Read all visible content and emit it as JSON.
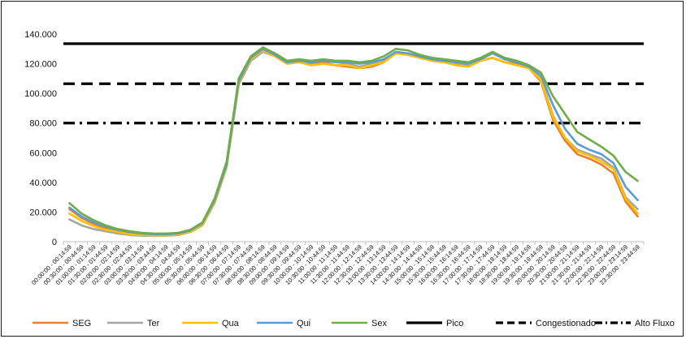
{
  "chart_data": {
    "type": "line",
    "title": "",
    "xlabel": "",
    "ylabel": "",
    "ylim": [
      0,
      140000
    ],
    "yticks": [
      "0",
      "20.000",
      "40.000",
      "60.000",
      "80.000",
      "100.000",
      "120.000",
      "140.000"
    ],
    "x": [
      "00:00:00 - 00:14:59",
      "00:30:00 - 00:44:59",
      "01:00:00 - 01:14:59",
      "01:30:00 - 01:44:59",
      "02:00:00 - 02:14:59",
      "02:30:00 - 02:44:59",
      "03:00:00 - 03:14:59",
      "03:30:00 - 03:44:59",
      "04:00:00 - 04:14:59",
      "04:30:00 - 04:44:59",
      "05:00:00 - 05:14:59",
      "05:30:00 - 05:44:59",
      "06:00:00 - 06:14:59",
      "06:30:00 - 06:44:59",
      "07:00:00 - 07:14:59",
      "07:30:00 - 07:44:59",
      "08:00:00 - 08:14:59",
      "08:30:00 - 08:44:59",
      "09:00:00 - 09:14:59",
      "09:30:00 - 09:44:59",
      "10:00:00 - 10:14:59",
      "10:30:00 - 10:44:59",
      "11:00:00 - 11:14:59",
      "11:30:00 - 11:44:59",
      "12:00:00 - 12:14:59",
      "12:30:00 - 12:44:59",
      "13:00:00 - 13:14:59",
      "13:30:00 - 13:44:59",
      "14:00:00 - 14:14:59",
      "14:30:00 - 14:44:59",
      "15:00:00 - 15:14:59",
      "15:30:00 - 15:44:59",
      "16:00:00 - 16:14:59",
      "16:30:00 - 16:44:59",
      "17:00:00 - 17:14:59",
      "17:30:00 - 17:44:59",
      "18:00:00 - 18:14:59",
      "18:30:00 - 18:44:59",
      "19:00:00 - 19:14:59",
      "19:30:00 - 19:44:59",
      "20:00:00 - 20:14:59",
      "20:30:00 - 20:44:59",
      "21:00:00 - 21:14:59",
      "21:30:00 - 21:44:59",
      "22:00:00 - 22:14:59",
      "22:30:00 - 22:44:59",
      "23:00:00 - 23:14:59",
      "23:30:00 - 23:44:59"
    ],
    "series": [
      {
        "name": "SEG",
        "color": "#ED7D31",
        "values": [
          22000,
          16000,
          12000,
          9000,
          7000,
          5500,
          5000,
          4500,
          4500,
          5000,
          7000,
          12000,
          28000,
          52000,
          108000,
          124000,
          130000,
          126000,
          121000,
          122000,
          120000,
          121000,
          119000,
          118000,
          117000,
          118000,
          121000,
          127000,
          126000,
          124000,
          122000,
          121000,
          119000,
          118000,
          122000,
          124000,
          121000,
          120000,
          117000,
          108000,
          82000,
          68000,
          59000,
          56000,
          52000,
          46000,
          27000,
          17000
        ]
      },
      {
        "name": "Ter",
        "color": "#A5A5A5",
        "values": [
          15000,
          11000,
          8500,
          7000,
          5500,
          4500,
          4000,
          4000,
          4000,
          4500,
          6500,
          11000,
          26000,
          50000,
          106000,
          122000,
          128000,
          125000,
          120000,
          121000,
          119000,
          120000,
          119000,
          120000,
          118000,
          120000,
          122000,
          127000,
          126000,
          124000,
          122000,
          121000,
          120000,
          119000,
          122000,
          124000,
          121000,
          119000,
          117000,
          110000,
          85000,
          70000,
          62000,
          59000,
          56000,
          50000,
          30000,
          22000
        ]
      },
      {
        "name": "Qua",
        "color": "#FFC000",
        "values": [
          19000,
          14000,
          10500,
          8000,
          6500,
          5000,
          4500,
          4300,
          4300,
          4800,
          6800,
          11500,
          27000,
          51000,
          107000,
          123000,
          129000,
          125000,
          120000,
          121000,
          119000,
          120000,
          119000,
          119000,
          117000,
          119000,
          121000,
          127000,
          126000,
          124000,
          122000,
          121000,
          119000,
          118000,
          122000,
          124000,
          121000,
          119000,
          117000,
          109000,
          84000,
          70000,
          61000,
          58000,
          54000,
          49000,
          29000,
          19000
        ]
      },
      {
        "name": "Qui",
        "color": "#5B9BD5",
        "values": [
          23000,
          17000,
          13000,
          10000,
          8000,
          6500,
          5500,
          5000,
          5000,
          5500,
          7500,
          12500,
          28000,
          52000,
          108000,
          124000,
          130000,
          126000,
          121000,
          122000,
          121000,
          122000,
          121000,
          121000,
          120000,
          121000,
          123000,
          128000,
          127000,
          125000,
          123000,
          122000,
          121000,
          120000,
          123000,
          127000,
          123000,
          121000,
          118000,
          112000,
          92000,
          76000,
          66000,
          62000,
          59000,
          53000,
          37000,
          28000
        ]
      },
      {
        "name": "Sex",
        "color": "#70AD47",
        "values": [
          26000,
          19000,
          14500,
          11000,
          8500,
          7000,
          6000,
          5500,
          5500,
          6000,
          8000,
          13000,
          29000,
          54000,
          110000,
          125000,
          131000,
          127000,
          122000,
          123000,
          122000,
          123000,
          122000,
          122000,
          121000,
          122000,
          125000,
          130000,
          129000,
          126000,
          124000,
          123000,
          122000,
          121000,
          124000,
          128000,
          124000,
          122000,
          119000,
          114000,
          98000,
          86000,
          74000,
          69000,
          64000,
          58000,
          47000,
          41000
        ]
      }
    ],
    "reference_lines": [
      {
        "name": "Pico",
        "value": 133500,
        "color": "#000000",
        "style": "solid"
      },
      {
        "name": "Congestionado",
        "value": 106500,
        "color": "#000000",
        "style": "dash"
      },
      {
        "name": "Alto Fluxo",
        "value": 80000,
        "color": "#000000",
        "style": "dashdot"
      }
    ],
    "legend_position": "bottom",
    "grid": false
  }
}
